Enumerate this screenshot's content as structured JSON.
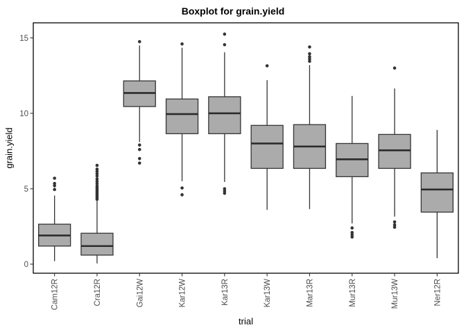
{
  "window": {
    "background": "#FFFFFF"
  },
  "style": {
    "box_fill": "#ABABAB",
    "line_color": "#333333",
    "median_color": "#2B2B2B",
    "outlier_color": "#333333",
    "panel_border_color": "#000000",
    "tick_color": "#333333",
    "tick_label_color": "#4D4D4D",
    "axis_title_color": "#000000",
    "background": "#FFFFFF"
  },
  "chart_data": {
    "type": "boxplot",
    "title": "Boxplot for grain.yield",
    "xlabel": "trial",
    "ylabel": "grain.yield",
    "ylim": [
      -0.6,
      16.0
    ],
    "y_ticks": [
      0,
      5,
      10,
      15
    ],
    "grid": false,
    "legend": false,
    "categories": [
      "Cam12R",
      "Cra12R",
      "Gai12W",
      "Kar12W",
      "Kar13R",
      "Kar13W",
      "Mar13R",
      "Mur13R",
      "Mur13W",
      "Ner12R"
    ],
    "series": [
      {
        "name": "Cam12R",
        "whisker_low": 0.2,
        "q1": 1.2,
        "median": 1.9,
        "q3": 2.65,
        "whisker_high": 4.55,
        "outliers": [
          4.95,
          5.2,
          5.35,
          5.7
        ]
      },
      {
        "name": "Cra12R",
        "whisker_low": 0.05,
        "q1": 0.6,
        "median": 1.2,
        "q3": 2.05,
        "whisker_high": 4.2,
        "outliers": [
          4.3,
          4.4,
          4.5,
          4.6,
          4.7,
          4.8,
          4.9,
          5.0,
          5.1,
          5.2,
          5.35,
          5.5,
          5.65,
          5.85,
          6.0,
          6.15,
          6.3,
          6.55
        ]
      },
      {
        "name": "Gai12W",
        "whisker_low": 8.1,
        "q1": 10.45,
        "median": 11.35,
        "q3": 12.15,
        "whisker_high": 14.5,
        "outliers": [
          6.7,
          7.0,
          7.6,
          7.9,
          14.75
        ]
      },
      {
        "name": "Kar12W",
        "whisker_low": 5.5,
        "q1": 8.65,
        "median": 9.95,
        "q3": 10.95,
        "whisker_high": 14.35,
        "outliers": [
          4.6,
          5.05,
          14.6
        ]
      },
      {
        "name": "Kar13R",
        "whisker_low": 5.45,
        "q1": 8.65,
        "median": 10.0,
        "q3": 11.1,
        "whisker_high": 14.05,
        "outliers": [
          4.7,
          4.85,
          5.0,
          14.55,
          15.25
        ]
      },
      {
        "name": "Kar13W",
        "whisker_low": 3.6,
        "q1": 6.35,
        "median": 8.0,
        "q3": 9.2,
        "whisker_high": 12.2,
        "outliers": [
          13.15
        ]
      },
      {
        "name": "Mar13R",
        "whisker_low": 3.65,
        "q1": 6.35,
        "median": 7.8,
        "q3": 9.25,
        "whisker_high": 13.2,
        "outliers": [
          13.45,
          13.6,
          13.75,
          13.95,
          14.4
        ]
      },
      {
        "name": "Mur13R",
        "whisker_low": 2.7,
        "q1": 5.8,
        "median": 6.95,
        "q3": 8.0,
        "whisker_high": 11.15,
        "outliers": [
          1.8,
          1.95,
          2.1,
          2.4
        ]
      },
      {
        "name": "Mur13W",
        "whisker_low": 3.15,
        "q1": 6.35,
        "median": 7.55,
        "q3": 8.6,
        "whisker_high": 11.65,
        "outliers": [
          2.45,
          2.6,
          2.8,
          13.0
        ]
      },
      {
        "name": "Ner12R",
        "whisker_low": 0.4,
        "q1": 3.45,
        "median": 4.95,
        "q3": 6.05,
        "whisker_high": 8.9,
        "outliers": []
      }
    ]
  }
}
